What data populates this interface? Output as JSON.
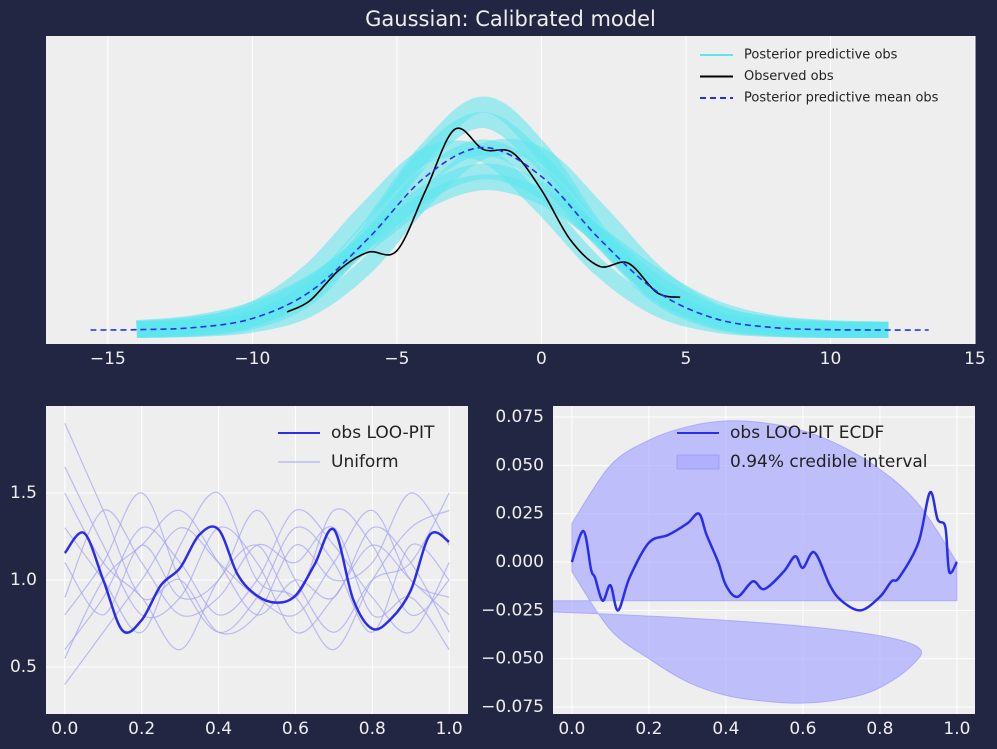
{
  "chart_data": [
    {
      "type": "line",
      "title": "Gaussian: Calibrated model",
      "xlim": [
        -17.14,
        15
      ],
      "ylim": [
        -0.009,
        0.189
      ],
      "xticks": [
        {
          "value": -15,
          "label": "−15"
        },
        {
          "value": -10,
          "label": "−10"
        },
        {
          "value": -5,
          "label": "−5"
        },
        0,
        5,
        10,
        15
      ],
      "yticks": [],
      "grid": true,
      "legend": "upper right",
      "series": [
        {
          "name": "Posterior predictive obs",
          "color": "#5ce6ee",
          "x": [
            -14,
            -12,
            -10,
            -8,
            -6,
            -4,
            -2,
            0,
            2,
            4,
            6,
            8,
            10,
            12
          ],
          "samples": [
            [
              0.0002,
              0.0016,
              0.0074,
              0.0247,
              0.0587,
              0.0987,
              0.1173,
              0.0987,
              0.0587,
              0.0247,
              0.0074,
              0.0016,
              0.0002,
              0
            ],
            [
              0.0001,
              0.001,
              0.0055,
              0.022,
              0.062,
              0.112,
              0.135,
              0.108,
              0.06,
              0.022,
              0.0055,
              0.001,
              0.0001,
              0
            ],
            [
              0.0008,
              0.0035,
              0.011,
              0.029,
              0.058,
              0.088,
              0.102,
              0.09,
              0.06,
              0.03,
              0.011,
              0.0035,
              0.0008,
              0.0002
            ],
            [
              0.0004,
              0.003,
              0.013,
              0.038,
              0.078,
              0.112,
              0.113,
              0.08,
              0.04,
              0.014,
              0.0035,
              0.0006,
              0.0001,
              0
            ],
            [
              0,
              0.0006,
              0.0035,
              0.014,
              0.042,
              0.085,
              0.115,
              0.112,
              0.076,
              0.036,
              0.012,
              0.0028,
              0.0004,
              0
            ],
            [
              0.0002,
              0.0014,
              0.007,
              0.026,
              0.065,
              0.115,
              0.145,
              0.115,
              0.062,
              0.024,
              0.0065,
              0.0012,
              0.0001,
              0
            ],
            [
              0.0012,
              0.0045,
              0.013,
              0.03,
              0.056,
              0.083,
              0.095,
              0.086,
              0.061,
              0.034,
              0.014,
              0.0045,
              0.0012,
              0.0003
            ]
          ]
        },
        {
          "name": "Observed obs",
          "color": "#000000",
          "x": [
            -8.8,
            -8,
            -7,
            -6,
            -5,
            -4,
            -3,
            -2,
            -1,
            0,
            1,
            2,
            3,
            4,
            4.8
          ],
          "values": [
            0.0116,
            0.019,
            0.0386,
            0.05,
            0.051,
            0.09,
            0.129,
            0.116,
            0.114,
            0.09,
            0.058,
            0.041,
            0.043,
            0.024,
            0.021
          ]
        },
        {
          "name": "Posterior predictive mean obs",
          "color": "#2a2eec",
          "dash": true,
          "x": [
            -15.6,
            -14,
            -12,
            -10,
            -8,
            -6,
            -4,
            -2,
            0,
            2,
            4,
            6,
            8,
            10,
            12,
            13.4
          ],
          "values": [
            0,
            0.0002,
            0.0016,
            0.0074,
            0.0247,
            0.0587,
            0.0987,
            0.1173,
            0.0987,
            0.0587,
            0.0247,
            0.0074,
            0.0016,
            0.0002,
            0,
            0
          ]
        }
      ]
    },
    {
      "type": "line",
      "xlim": [
        -0.049,
        1.049
      ],
      "ylim": [
        0.23,
        2.0
      ],
      "xticks": [
        {
          "value": 0,
          "label": "0.0"
        },
        0.2,
        0.4,
        0.6,
        0.8,
        {
          "value": 1,
          "label": "1.0"
        }
      ],
      "yticks": [
        0.5,
        {
          "value": 1,
          "label": "1.0"
        },
        1.5
      ],
      "grid": true,
      "legend": "upper right",
      "series": [
        {
          "name": "obs LOO-PIT",
          "color": "#2a2eec",
          "x": [
            0,
            0.05,
            0.1,
            0.15,
            0.2,
            0.25,
            0.3,
            0.35,
            0.4,
            0.45,
            0.5,
            0.55,
            0.6,
            0.65,
            0.7,
            0.75,
            0.8,
            0.85,
            0.9,
            0.95,
            1
          ],
          "values": [
            1.155,
            1.27,
            1.0,
            0.71,
            0.77,
            0.97,
            1.07,
            1.26,
            1.29,
            1.03,
            0.91,
            0.87,
            0.91,
            1.09,
            1.29,
            0.89,
            0.72,
            0.78,
            0.94,
            1.26,
            1.22
          ]
        },
        {
          "name": "Uniform",
          "color": "#a3a4f5",
          "x": [
            0,
            0.1,
            0.2,
            0.3,
            0.4,
            0.5,
            0.6,
            0.7,
            0.8,
            0.9,
            1
          ],
          "samples": [
            [
              1.65,
              1.2,
              0.8,
              0.9,
              1.3,
              1.1,
              0.7,
              0.9,
              1.2,
              1.0,
              0.8
            ],
            [
              0.6,
              0.9,
              1.3,
              1.1,
              0.8,
              1.0,
              1.4,
              1.2,
              0.9,
              0.7,
              1.1
            ],
            [
              1.3,
              1.0,
              0.7,
              1.2,
              1.5,
              1.0,
              0.9,
              0.6,
              1.0,
              1.3,
              1.4
            ],
            [
              0.9,
              1.4,
              1.1,
              0.8,
              0.9,
              1.2,
              1.1,
              1.3,
              0.8,
              0.9,
              0.6
            ],
            [
              1.9,
              1.4,
              0.9,
              1.0,
              0.7,
              0.8,
              1.2,
              1.0,
              1.1,
              1.5,
              1.2
            ],
            [
              0.4,
              0.7,
              1.0,
              1.3,
              1.1,
              0.9,
              0.8,
              1.1,
              1.4,
              1.0,
              0.9
            ],
            [
              1.1,
              0.8,
              1.2,
              0.9,
              1.0,
              1.4,
              1.0,
              0.7,
              1.0,
              1.1,
              1.5
            ],
            [
              0.8,
              1.1,
              1.5,
              1.0,
              0.7,
              0.9,
              1.3,
              1.1,
              0.7,
              1.2,
              1.0
            ],
            [
              1.5,
              1.1,
              0.9,
              0.6,
              1.0,
              1.2,
              0.9,
              1.4,
              1.2,
              0.8,
              1.0
            ],
            [
              0.55,
              1.0,
              1.2,
              1.4,
              1.1,
              0.8,
              1.0,
              0.9,
              1.3,
              1.1,
              0.7
            ]
          ]
        }
      ]
    },
    {
      "type": "line",
      "xlim": [
        -0.049,
        1.047
      ],
      "ylim": [
        -0.0786,
        0.0807
      ],
      "xticks": [
        {
          "value": 0,
          "label": "0.0"
        },
        0.2,
        0.4,
        0.6,
        0.8,
        {
          "value": 1,
          "label": "1.0"
        }
      ],
      "yticks": [
        {
          "value": -0.075,
          "label": "−0.075"
        },
        {
          "value": -0.05,
          "label": "−0.050"
        },
        {
          "value": -0.025,
          "label": "−0.025"
        },
        {
          "value": 0,
          "label": "0.000"
        },
        0.025,
        {
          "value": 0.05,
          "label": "0.050"
        },
        0.075
      ],
      "grid": true,
      "legend": "upper right",
      "series": [
        {
          "name": "obs LOO-PIT ECDF",
          "color": "#2a2eec",
          "x": [
            0,
            0.03,
            0.05,
            0.06,
            0.08,
            0.1,
            0.12,
            0.15,
            0.2,
            0.25,
            0.3,
            0.33,
            0.35,
            0.38,
            0.4,
            0.43,
            0.47,
            0.5,
            0.55,
            0.58,
            0.6,
            0.63,
            0.67,
            0.7,
            0.75,
            0.8,
            0.83,
            0.85,
            0.9,
            0.93,
            0.95,
            0.97,
            0.98,
            1
          ],
          "values": [
            0,
            0.016,
            -0.004,
            -0.008,
            -0.02,
            -0.012,
            -0.025,
            -0.008,
            0.01,
            0.014,
            0.02,
            0.025,
            0.014,
            0,
            -0.012,
            -0.018,
            -0.01,
            -0.014,
            -0.005,
            0.003,
            -0.003,
            0.005,
            -0.012,
            -0.02,
            -0.025,
            -0.018,
            -0.01,
            -0.008,
            0.01,
            0.036,
            0.022,
            0.018,
            -0.005,
            0
          ]
        },
        {
          "name": "0.94% credible interval",
          "color": "#aaaaff",
          "style": "band",
          "x": [
            0,
            0.1,
            0.2,
            0.3,
            0.4,
            0.5,
            0.6,
            0.7,
            0.8,
            0.9,
            1
          ],
          "upper": [
            0.02,
            0.05,
            0.063,
            0.07,
            0.073,
            0.072,
            0.068,
            0.06,
            0.048,
            0.03,
            0.0
          ],
          "lower": [
            -0.005,
            -0.035,
            -0.05,
            -0.062,
            -0.069,
            -0.072,
            -0.073,
            -0.071,
            -0.065,
            -0.05,
            -0.02
          ]
        }
      ]
    }
  ]
}
